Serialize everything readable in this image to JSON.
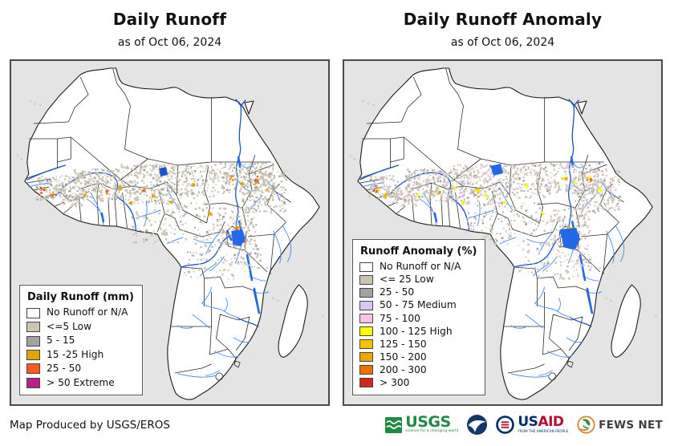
{
  "panels": [
    {
      "title": "Daily Runoff",
      "subtitle": "as of Oct 06, 2024",
      "legend": {
        "title": "Daily Runoff (mm)",
        "items": [
          {
            "label": "No Runoff or N/A",
            "color": "#ffffff"
          },
          {
            "label": "<=5 Low",
            "color": "#ccc4b3"
          },
          {
            "label": "5 - 15",
            "color": "#a3a3a3"
          },
          {
            "label": "15 -25 High",
            "color": "#e3a400"
          },
          {
            "label": "25 - 50",
            "color": "#fc5a1f"
          },
          {
            "label": "> 50 Extreme",
            "color": "#bb2089"
          }
        ]
      }
    },
    {
      "title": "Daily Runoff Anomaly",
      "subtitle": "as of Oct 06, 2024",
      "legend": {
        "title": "Runoff Anomaly (%)",
        "items": [
          {
            "label": "No Runoff or N/A",
            "color": "#ffffff"
          },
          {
            "label": "<= 25 Low",
            "color": "#ccc4b3"
          },
          {
            "label": "25 - 50",
            "color": "#a3a3a3"
          },
          {
            "label": "50 - 75 Medium",
            "color": "#d9c6f2"
          },
          {
            "label": "75 - 100",
            "color": "#fdc3e6"
          },
          {
            "label": "100 - 125 High",
            "color": "#fcff00"
          },
          {
            "label": "125 - 150",
            "color": "#f3c500"
          },
          {
            "label": "150 - 200",
            "color": "#f0a400"
          },
          {
            "label": "200 - 300",
            "color": "#ee7100"
          },
          {
            "label": "> 300",
            "color": "#d3261c"
          }
        ]
      }
    }
  ],
  "map_colors": {
    "ocean": "#e4e4e4",
    "land": "#ffffff",
    "coast": "#1a1a1a",
    "border": "#2b2b2b",
    "river_major": "#1c55c8",
    "river_minor": "#4b8fee",
    "lake": "#2268e8"
  },
  "footer": {
    "credit": "Map Produced by USGS/EROS",
    "logos": {
      "usgs": {
        "text": "USGS",
        "tagline": "science for a changing world"
      },
      "noaa": {
        "name": "NOAA"
      },
      "usaid": {
        "text_us": "US",
        "text_aid": "AID",
        "tagline": "FROM THE AMERICAN PEOPLE"
      },
      "fewsnet": {
        "text": "FEWS NET"
      }
    }
  }
}
